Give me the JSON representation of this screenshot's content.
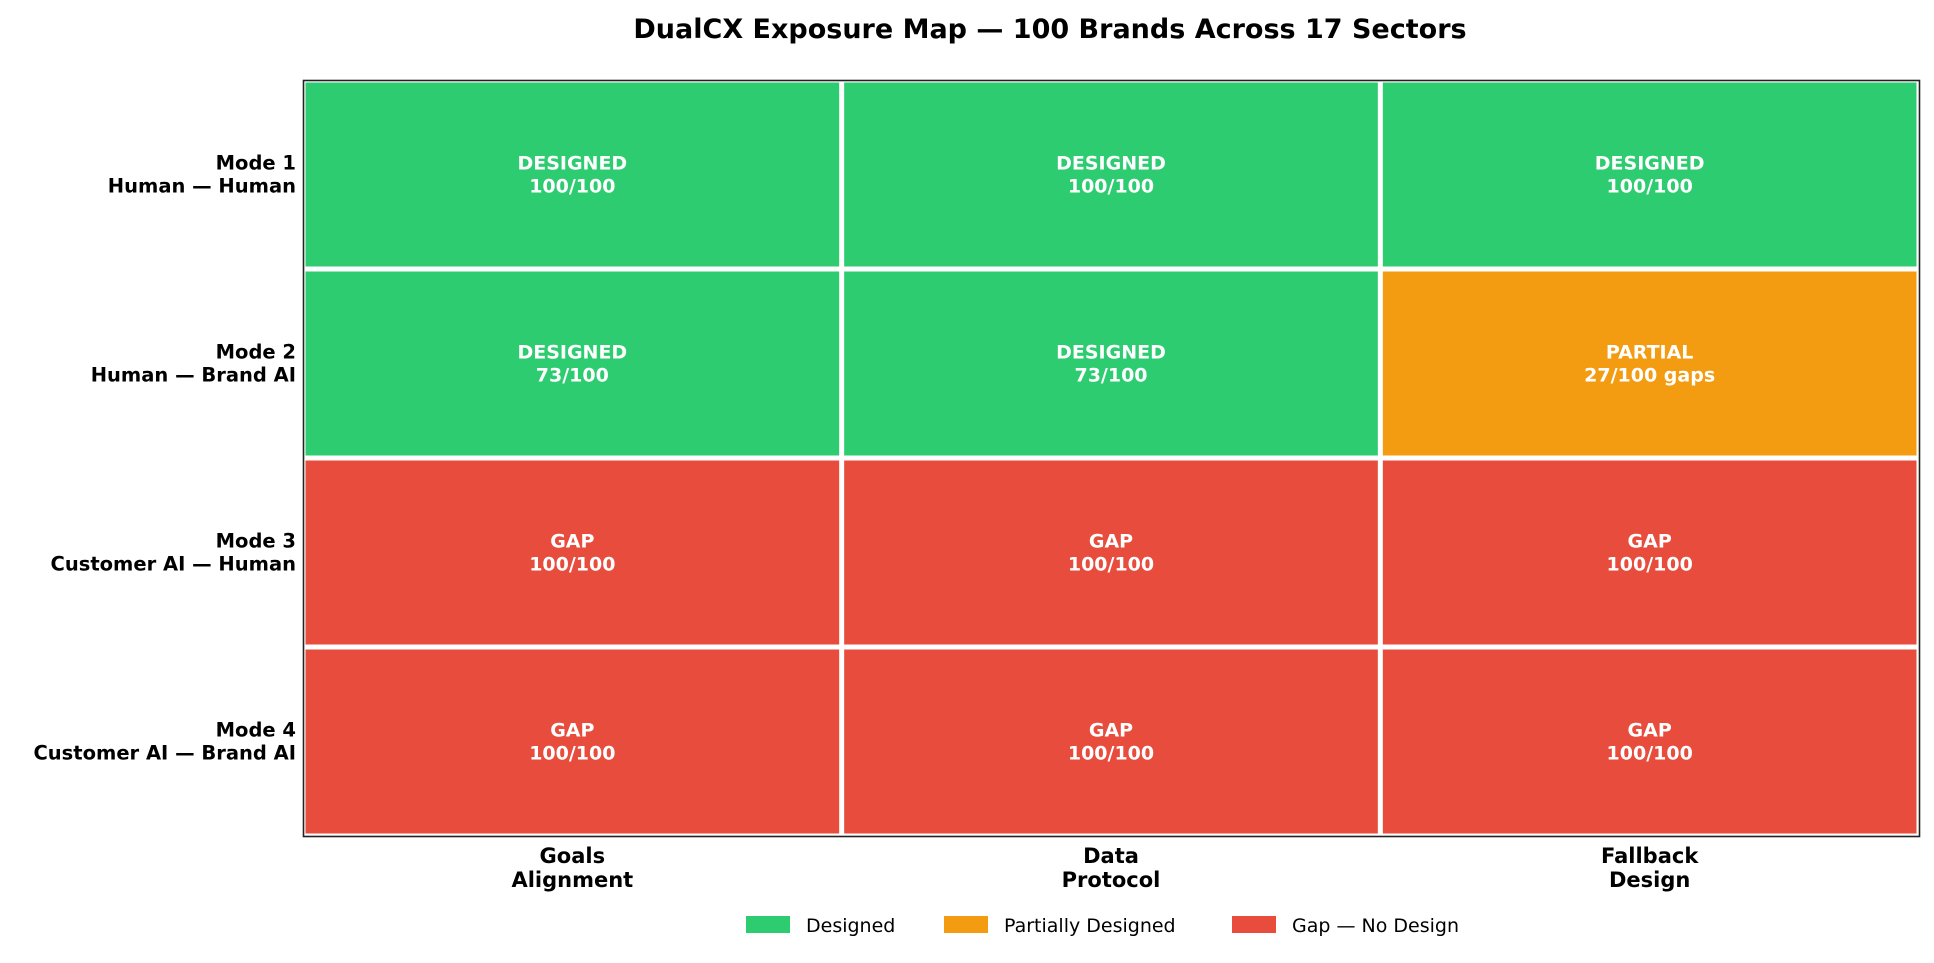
{
  "chart_data": {
    "type": "heatmap",
    "title": "DualCX Exposure Map — 100 Brands Across 17 Sectors",
    "columns": [
      [
        "Goals",
        "Alignment"
      ],
      [
        "Data",
        "Protocol"
      ],
      [
        "Fallback",
        "Design"
      ]
    ],
    "rows": [
      [
        "Mode 1",
        "Human — Human"
      ],
      [
        "Mode 2",
        "Human — Brand AI"
      ],
      [
        "Mode 3",
        "Customer AI — Human"
      ],
      [
        "Mode 4",
        "Customer AI — Brand AI"
      ]
    ],
    "cells": [
      [
        {
          "status": "designed",
          "label": "DESIGNED",
          "value": "100/100"
        },
        {
          "status": "designed",
          "label": "DESIGNED",
          "value": "100/100"
        },
        {
          "status": "designed",
          "label": "DESIGNED",
          "value": "100/100"
        }
      ],
      [
        {
          "status": "designed",
          "label": "DESIGNED",
          "value": "73/100"
        },
        {
          "status": "designed",
          "label": "DESIGNED",
          "value": "73/100"
        },
        {
          "status": "partial",
          "label": "PARTIAL",
          "value": "27/100 gaps"
        }
      ],
      [
        {
          "status": "gap",
          "label": "GAP",
          "value": "100/100"
        },
        {
          "status": "gap",
          "label": "GAP",
          "value": "100/100"
        },
        {
          "status": "gap",
          "label": "GAP",
          "value": "100/100"
        }
      ],
      [
        {
          "status": "gap",
          "label": "GAP",
          "value": "100/100"
        },
        {
          "status": "gap",
          "label": "GAP",
          "value": "100/100"
        },
        {
          "status": "gap",
          "label": "GAP",
          "value": "100/100"
        }
      ]
    ],
    "colors": {
      "designed": "#2ecc71",
      "partial": "#f39c12",
      "gap": "#e74c3c"
    },
    "legend": {
      "position": "bottom-center",
      "items": [
        {
          "status": "designed",
          "label": "Designed"
        },
        {
          "status": "partial",
          "label": "Partially Designed"
        },
        {
          "status": "gap",
          "label": "Gap — No Design"
        }
      ]
    }
  }
}
